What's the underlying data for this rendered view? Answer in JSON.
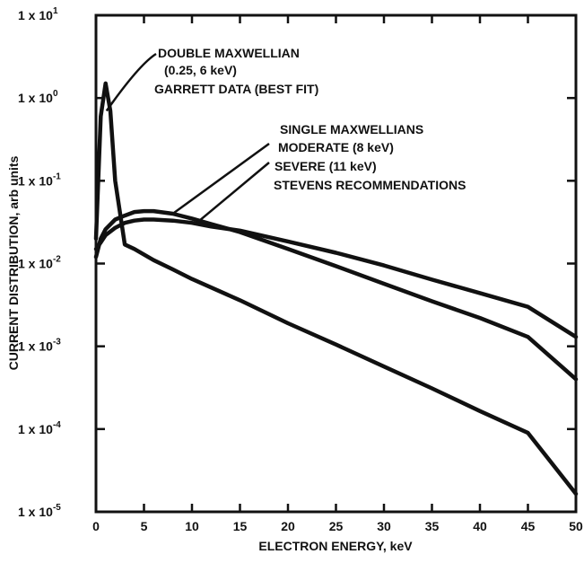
{
  "chart_data": {
    "type": "line",
    "title": "",
    "xlabel": "ELECTRON ENERGY, keV",
    "ylabel": "CURRENT DISTRIBUTION, arb units",
    "xlim": [
      0,
      50
    ],
    "ylim": [
      1e-05,
      10
    ],
    "y_scale": "log",
    "grid": false,
    "x_ticks": [
      0,
      5,
      10,
      15,
      20,
      25,
      30,
      35,
      40,
      45,
      50
    ],
    "y_tick_labels": [
      {
        "base": "1 x 10",
        "exp": "1"
      },
      {
        "base": "1 x 10",
        "exp": "0"
      },
      {
        "base": "1 x 10",
        "exp": "-1"
      },
      {
        "base": "1 x 10",
        "exp": "-2"
      },
      {
        "base": "1 x 10",
        "exp": "-3"
      },
      {
        "base": "1 x 10",
        "exp": "-4"
      },
      {
        "base": "1 x 10",
        "exp": "-5"
      }
    ],
    "series": [
      {
        "x": [
          0,
          0.5,
          1,
          1.5,
          2,
          3,
          4,
          6,
          8,
          10,
          15,
          20,
          25,
          30,
          35,
          40,
          45,
          50
        ],
        "y": [
          0.02,
          0.6,
          1.5,
          0.7,
          0.1,
          0.017,
          0.015,
          0.011,
          0.0085,
          0.0065,
          0.0036,
          0.0019,
          0.00105,
          0.00057,
          0.00031,
          0.000165,
          9e-05,
          1.65e-05
        ]
      },
      {
        "x": [
          0,
          0.5,
          1,
          2,
          3,
          4,
          5,
          6,
          8,
          10,
          12,
          15,
          20,
          25,
          30,
          35,
          40,
          45,
          50
        ],
        "y": [
          0.012,
          0.02,
          0.026,
          0.034,
          0.038,
          0.042,
          0.043,
          0.043,
          0.04,
          0.035,
          0.03,
          0.024,
          0.015,
          0.0093,
          0.0057,
          0.0035,
          0.0022,
          0.0013,
          0.0004
        ]
      },
      {
        "x": [
          0,
          0.5,
          1,
          2,
          3,
          4,
          5,
          6,
          8,
          10,
          12,
          15,
          20,
          25,
          30,
          35,
          40,
          45,
          50
        ],
        "y": [
          0.015,
          0.018,
          0.022,
          0.027,
          0.031,
          0.033,
          0.034,
          0.034,
          0.033,
          0.031,
          0.028,
          0.025,
          0.0185,
          0.0135,
          0.0095,
          0.0064,
          0.0044,
          0.003,
          0.0013
        ]
      }
    ],
    "annotations": [
      {
        "text": "DOUBLE MAXWELLIAN",
        "target": {
          "x": 1.1,
          "y": 0.7
        }
      },
      {
        "text": "(0.25, 6 keV)"
      },
      {
        "text": "GARRETT DATA (BEST FIT)"
      },
      {
        "text": "SINGLE MAXWELLIANS"
      },
      {
        "text": "MODERATE (8 keV)",
        "target": {
          "x": 8,
          "y": 0.04
        }
      },
      {
        "text": "SEVERE (11 keV)",
        "target": {
          "x": 10.5,
          "y": 0.031
        }
      },
      {
        "text": "STEVENS RECOMMENDATIONS"
      }
    ]
  }
}
